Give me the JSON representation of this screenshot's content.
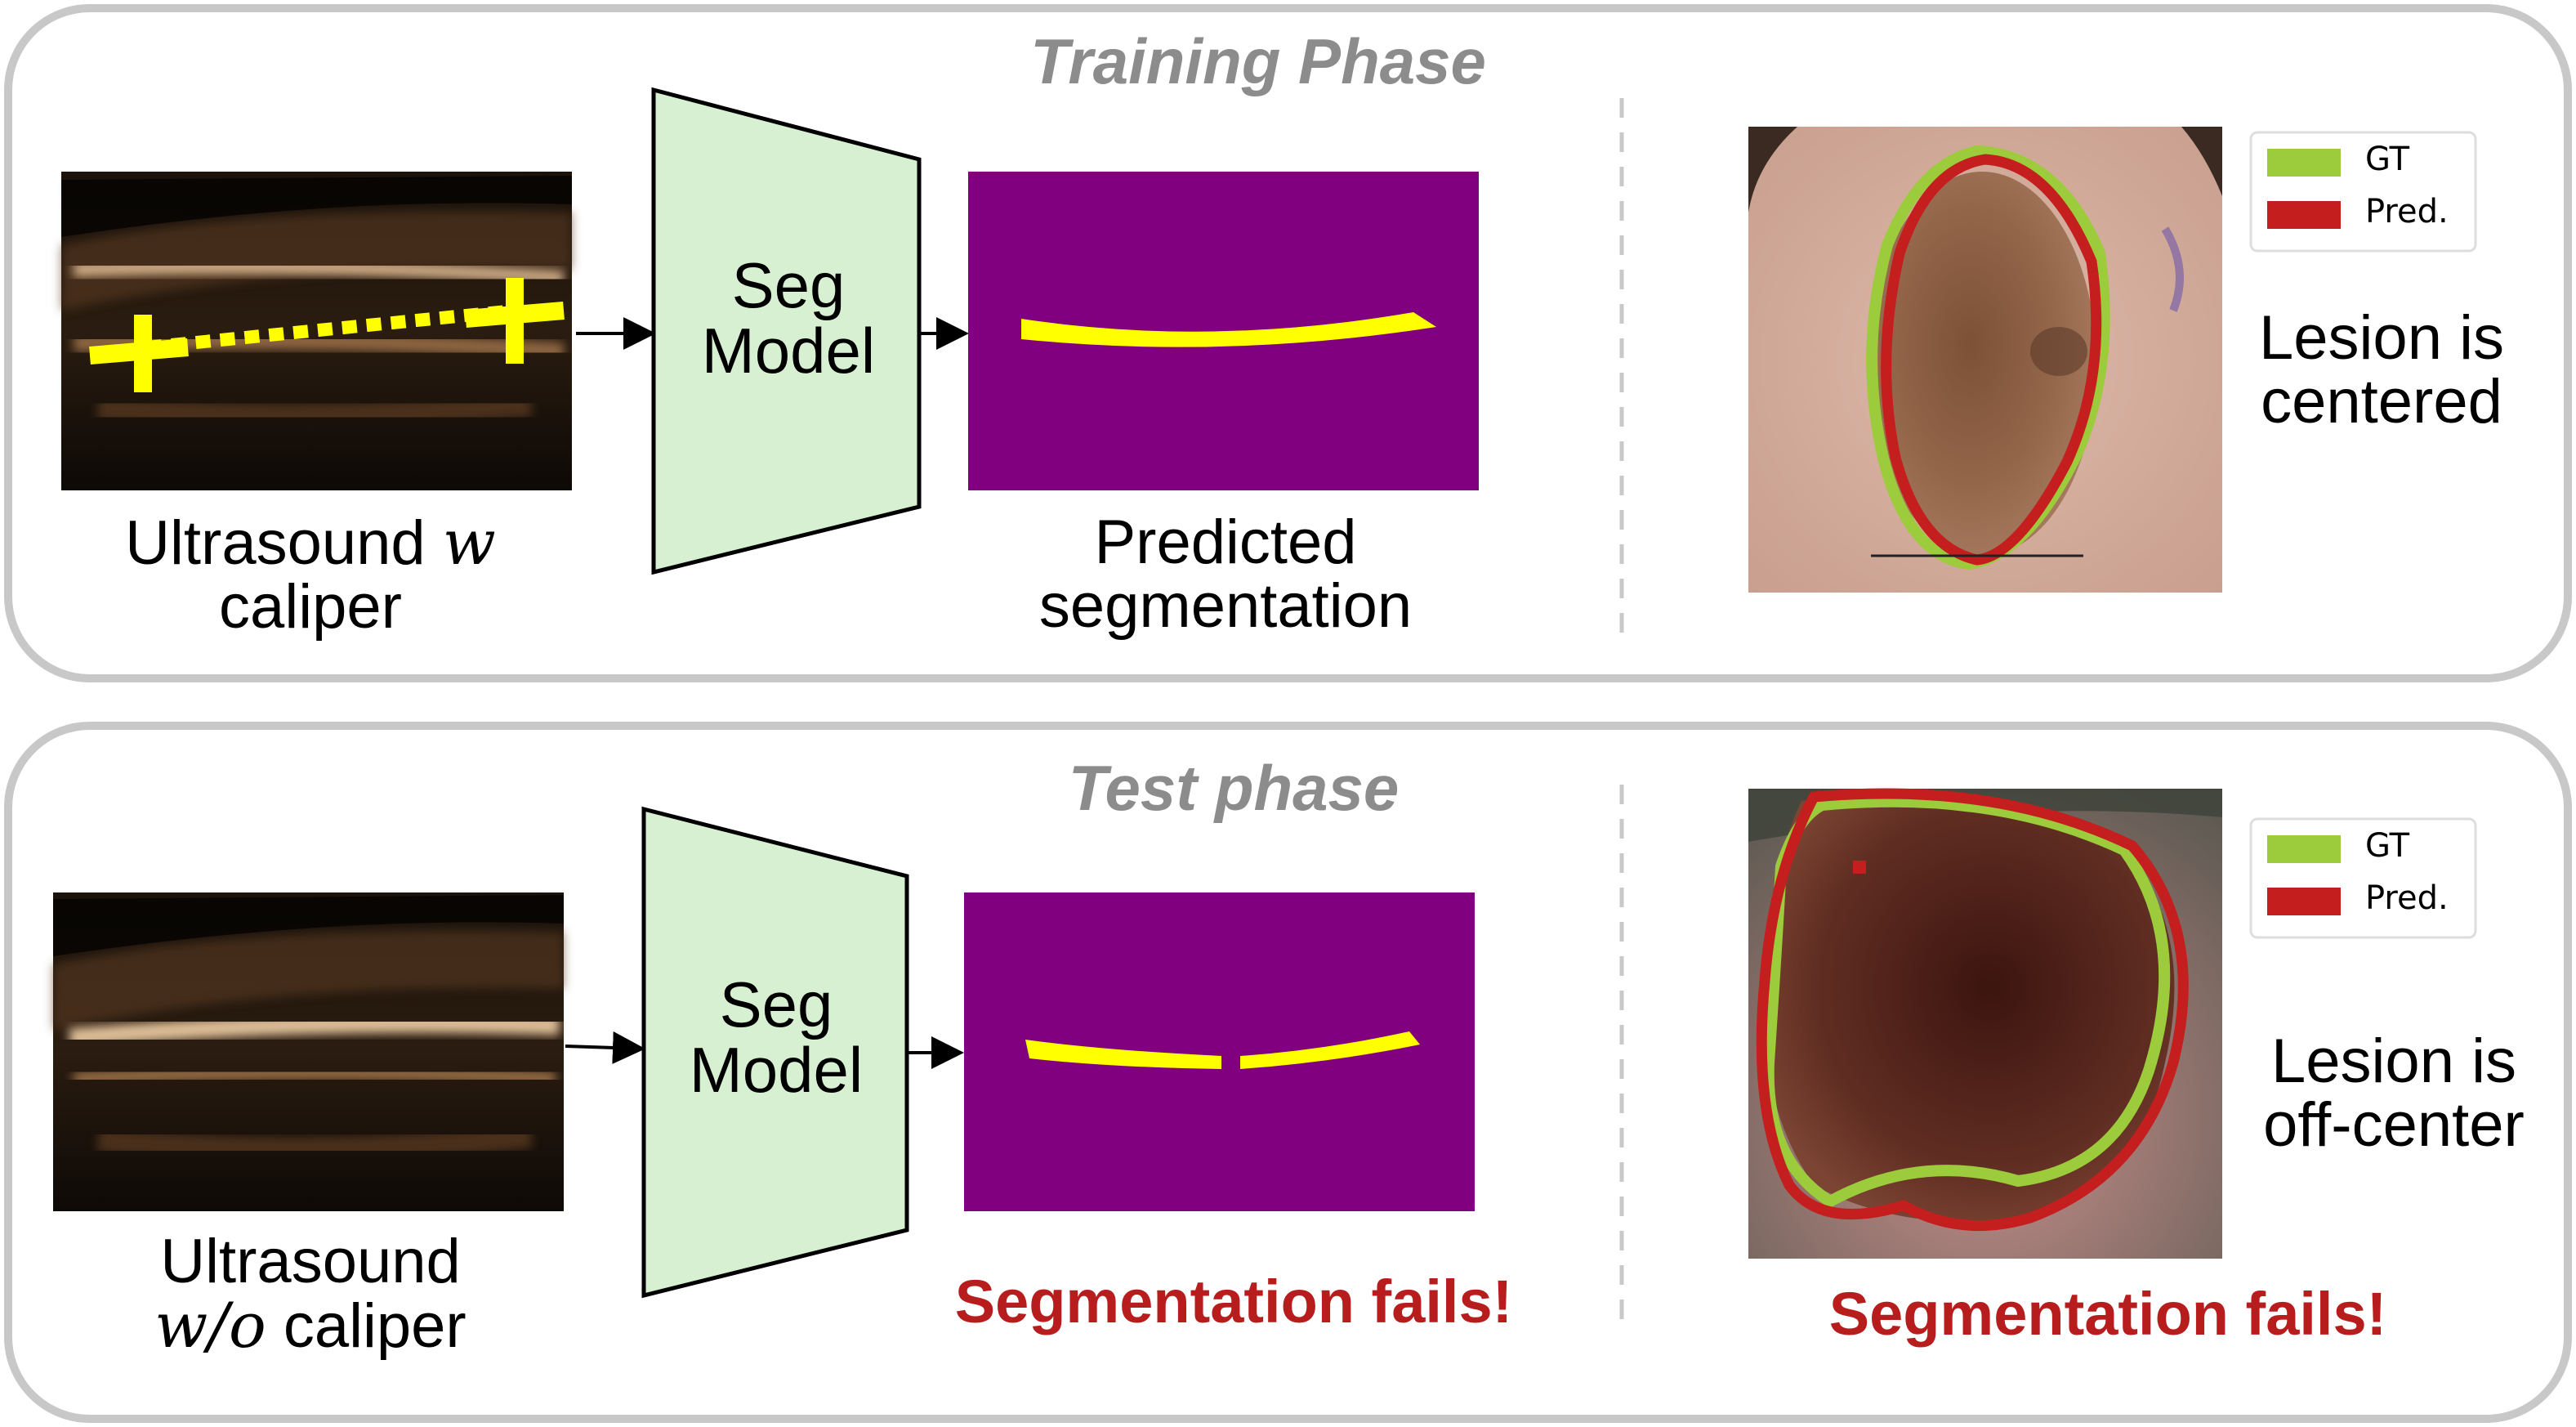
{
  "training": {
    "phase_title": "Training Phase",
    "input_caption_line1_prefix": "Ultrasound ",
    "input_caption_line1_italic": "w",
    "input_caption_line2": "caliper",
    "model_line1": "Seg",
    "model_line2": "Model",
    "output_caption_line1": "Predicted",
    "output_caption_line2": "segmentation",
    "lesion_text_line1": "Lesion is",
    "lesion_text_line2": "centered",
    "legend": [
      {
        "label": "GT",
        "color": "#9ccb3b"
      },
      {
        "label": "Pred.",
        "color": "#c41e1e"
      }
    ]
  },
  "test": {
    "phase_title": "Test phase",
    "input_caption_line1": "Ultrasound",
    "input_caption_line2_italic": "w/o",
    "input_caption_line2_suffix": " caliper",
    "model_line1": "Seg",
    "model_line2": "Model",
    "fail_text_left": "Segmentation fails!",
    "lesion_text_line1": "Lesion is",
    "lesion_text_line2": "off-center",
    "fail_text_right": "Segmentation fails!",
    "legend": [
      {
        "label": "GT",
        "color": "#9ccb3b"
      },
      {
        "label": "Pred.",
        "color": "#c41e1e"
      }
    ]
  },
  "colors": {
    "panel_border": "#c8c8c8",
    "model_fill": "#d8f0d2",
    "mask_background": "#800080",
    "mask_foreground": "#ffff00",
    "caliper": "#ffff00",
    "fail_text": "#b81d1d"
  }
}
